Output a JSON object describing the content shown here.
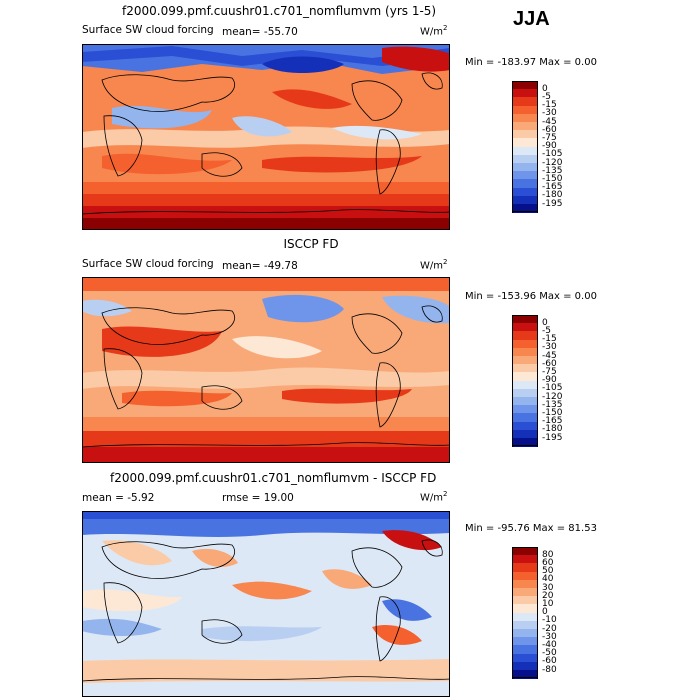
{
  "season": "JJA",
  "units": "W/m",
  "units_exp": "2",
  "panels": [
    {
      "title": "f2000.099.pmf.cuushr01.c701_nomflumvm (yrs 1-5)",
      "field": "Surface SW cloud forcing",
      "mean_text": "mean=  -55.70",
      "minmax_text": "Min = -183.97 Max =    0.00",
      "levels": [
        "0",
        "-5",
        "-15",
        "-30",
        "-45",
        "-60",
        "-75",
        "-90",
        "-105",
        "-120",
        "-135",
        "-150",
        "-165",
        "-180",
        "-195"
      ],
      "colors": [
        "#8b0000",
        "#c81010",
        "#e6391a",
        "#f4602e",
        "#f7864f",
        "#f9a878",
        "#fbcaa6",
        "#fde8d6",
        "#dde8f7",
        "#b9cff2",
        "#94b4ee",
        "#6f95ea",
        "#4a73e2",
        "#2a4fd4",
        "#1530b8",
        "#06108a"
      ]
    },
    {
      "title": "ISCCP FD",
      "field": "Surface SW cloud forcing",
      "mean_text": "mean=  -49.78",
      "minmax_text": "Min = -153.96 Max =    0.00",
      "levels": [
        "0",
        "-5",
        "-15",
        "-30",
        "-45",
        "-60",
        "-75",
        "-90",
        "-105",
        "-120",
        "-135",
        "-150",
        "-165",
        "-180",
        "-195"
      ],
      "colors": [
        "#8b0000",
        "#c81010",
        "#e6391a",
        "#f4602e",
        "#f7864f",
        "#f9a878",
        "#fbcaa6",
        "#fde8d6",
        "#dde8f7",
        "#b9cff2",
        "#94b4ee",
        "#6f95ea",
        "#4a73e2",
        "#2a4fd4",
        "#1530b8",
        "#06108a"
      ]
    },
    {
      "title": "f2000.099.pmf.cuushr01.c701_nomflumvm - ISCCP FD",
      "mean_text": "mean =   -5.92",
      "rmse_text": "rmse =   19.00",
      "minmax_text": "Min = -95.76 Max =  81.53",
      "levels": [
        "80",
        "60",
        "50",
        "40",
        "30",
        "20",
        "10",
        "0",
        "-10",
        "-20",
        "-30",
        "-40",
        "-50",
        "-60",
        "-80"
      ],
      "colors": [
        "#8b0000",
        "#c81010",
        "#e6391a",
        "#f4602e",
        "#f7864f",
        "#f9a878",
        "#fbcaa6",
        "#fde8d6",
        "#dde8f7",
        "#b9cff2",
        "#94b4ee",
        "#6f95ea",
        "#4a73e2",
        "#2a4fd4",
        "#1530b8",
        "#06108a"
      ]
    }
  ]
}
